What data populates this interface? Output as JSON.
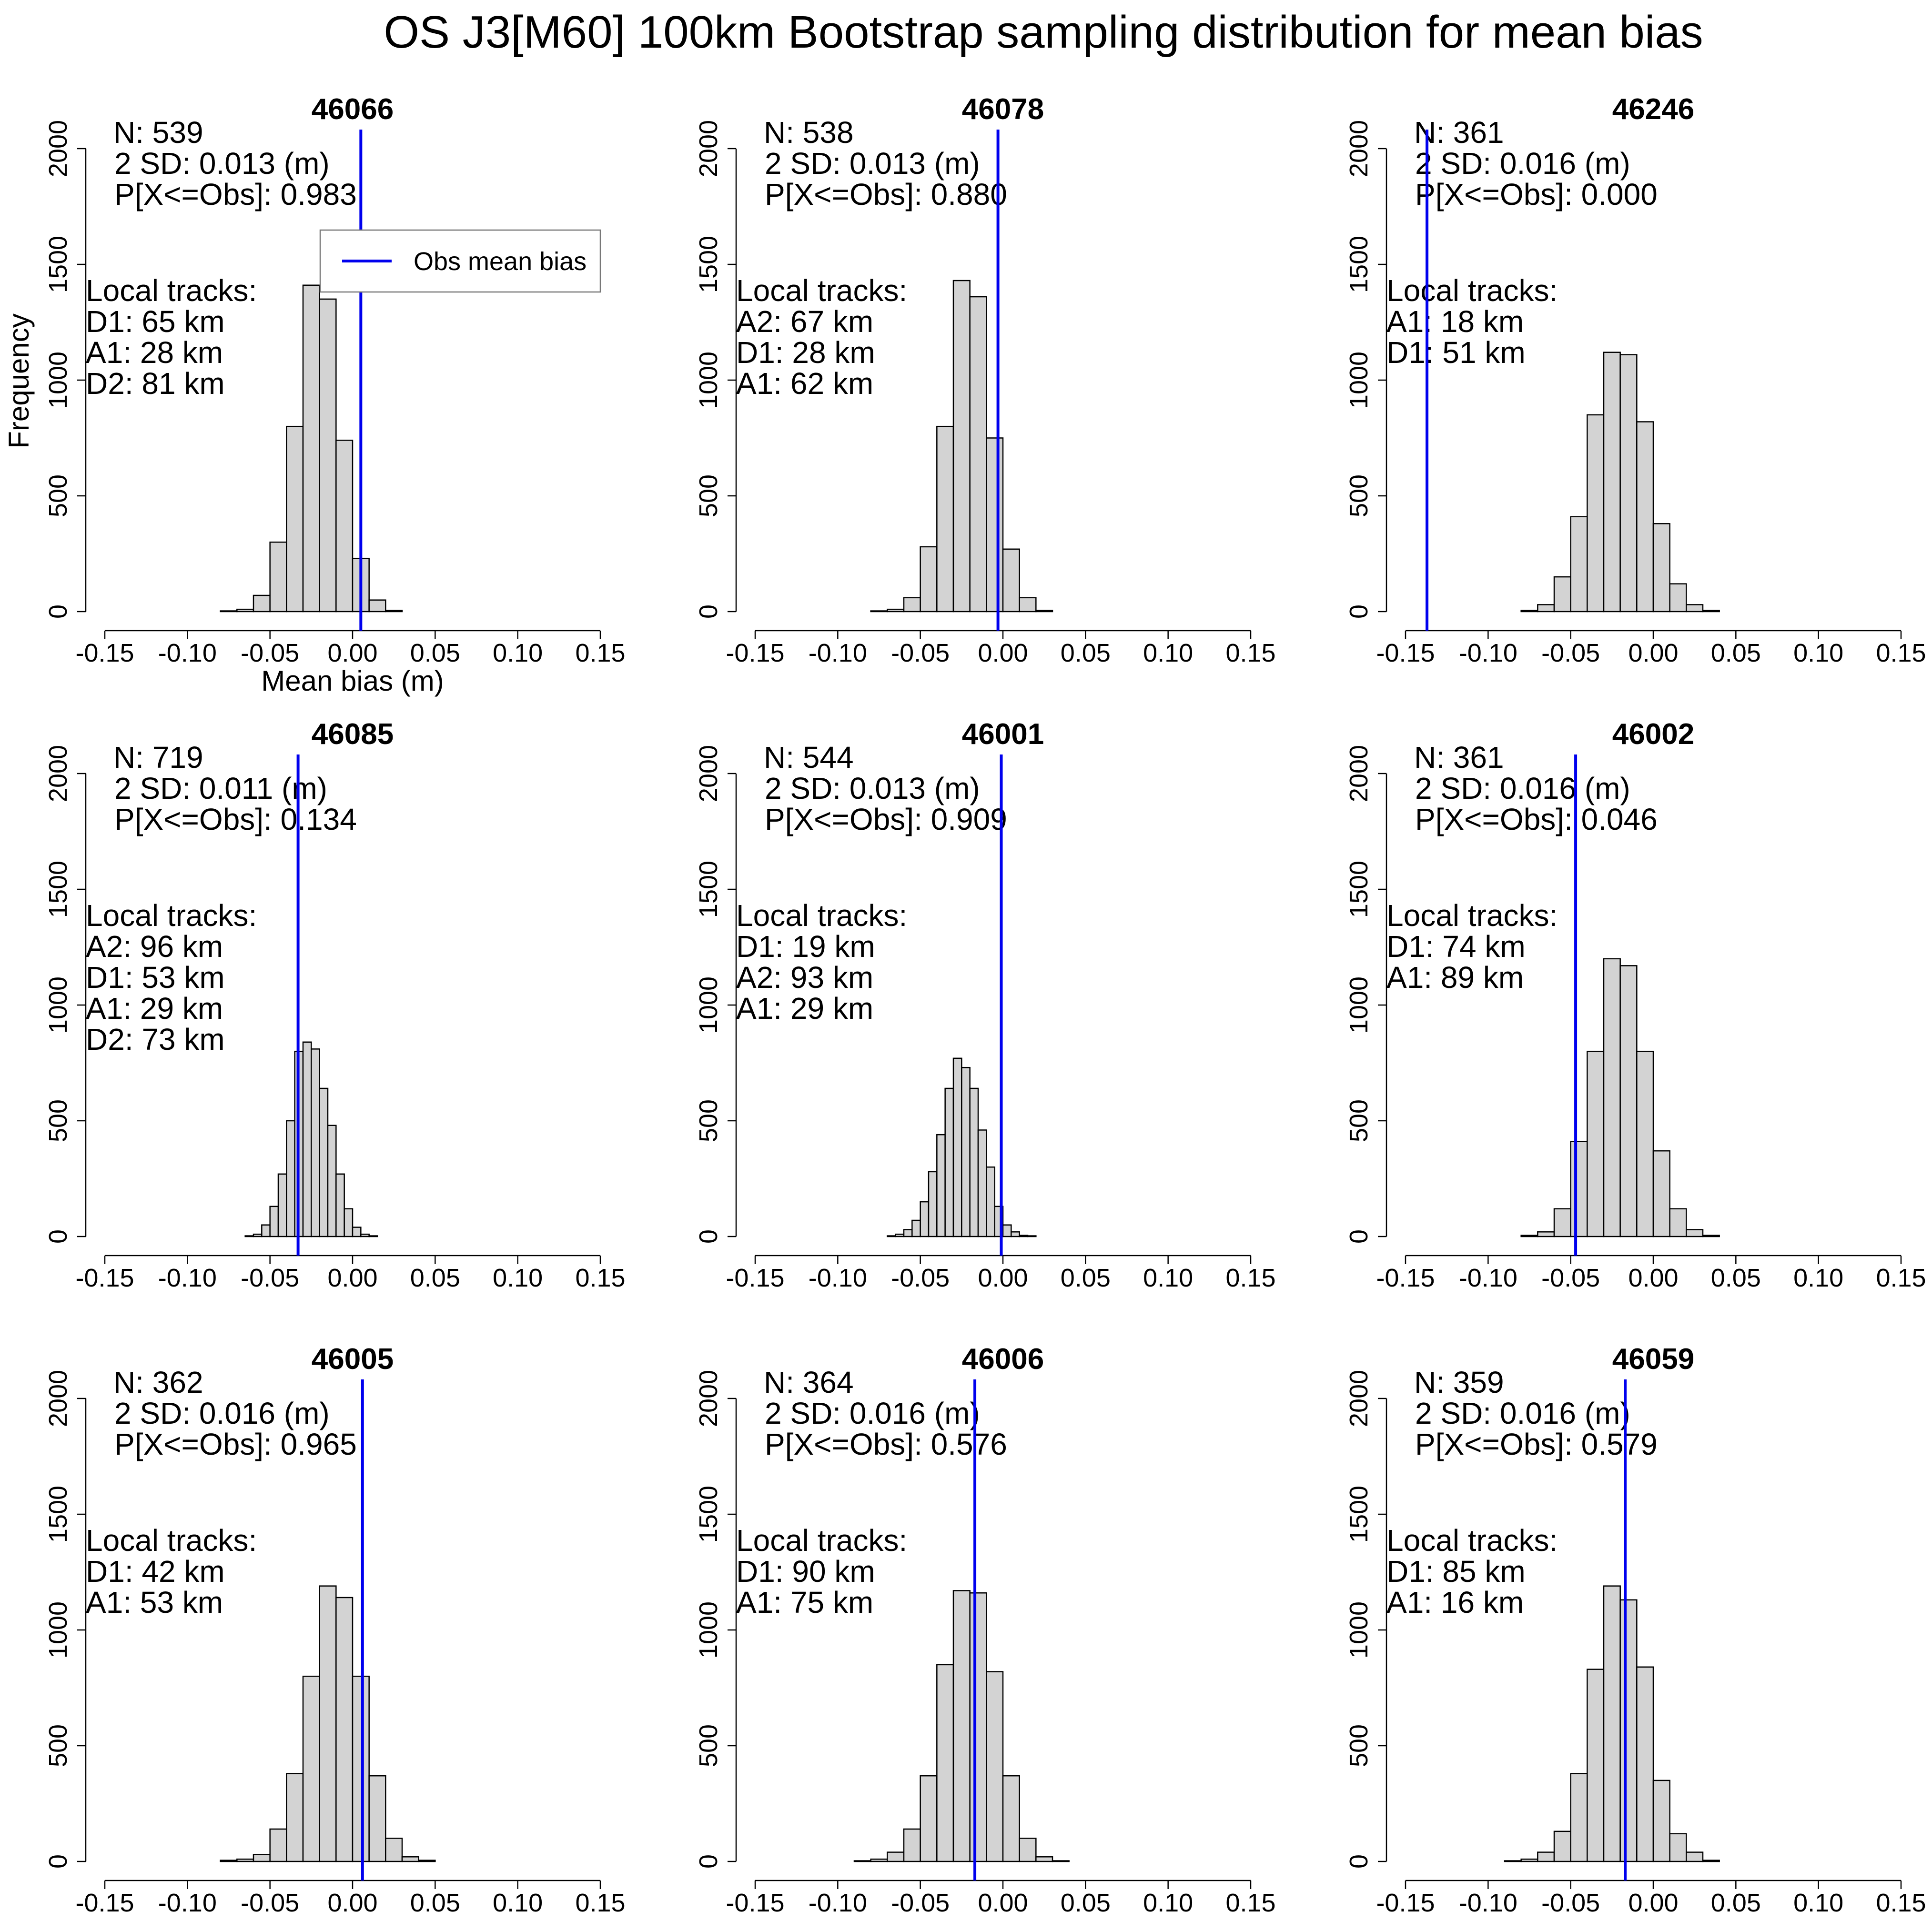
{
  "figure": {
    "title": "OS J3[M60] 100km Bootstrap sampling distribution for mean bias",
    "ylabel": "Frequency",
    "xlabel": "Mean bias (m)",
    "colors": {
      "bar_fill": "#d3d3d3",
      "bar_stroke": "#000000",
      "obs_line": "#0000ee"
    },
    "legend": {
      "label": "Obs mean bias",
      "location": "top-right of first panel"
    }
  },
  "chart_data": [
    {
      "type": "bar",
      "station": "46066",
      "xlim": [
        -0.15,
        0.15
      ],
      "ylim": [
        0,
        2000
      ],
      "xticks": [
        "-0.15",
        "-0.10",
        "-0.05",
        "0.00",
        "0.05",
        "0.10",
        "0.15"
      ],
      "yticks": [
        "0",
        "500",
        "1000",
        "1500",
        "2000"
      ],
      "bin_width": 0.01,
      "bin_start": -0.08,
      "values": [
        3,
        10,
        70,
        300,
        800,
        1410,
        1350,
        740,
        230,
        50,
        5
      ],
      "obs_mean_bias": 0.005,
      "stats": [
        "N: 539",
        "2 SD: 0.013 (m)",
        "P[X<=Obs]: 0.983"
      ],
      "tracks": [
        "Local tracks:",
        "D1: 65 km",
        "A1: 28 km",
        "D2: 81 km"
      ]
    },
    {
      "type": "bar",
      "station": "46078",
      "xlim": [
        -0.15,
        0.15
      ],
      "ylim": [
        0,
        2000
      ],
      "xticks": [
        "-0.15",
        "-0.10",
        "-0.05",
        "0.00",
        "0.05",
        "0.10",
        "0.15"
      ],
      "yticks": [
        "0",
        "500",
        "1000",
        "1500",
        "2000"
      ],
      "bin_width": 0.01,
      "bin_start": -0.08,
      "values": [
        3,
        10,
        60,
        280,
        800,
        1430,
        1360,
        750,
        270,
        60,
        5
      ],
      "obs_mean_bias": -0.003,
      "stats": [
        "N: 538",
        "2 SD: 0.013 (m)",
        "P[X<=Obs]: 0.880"
      ],
      "tracks": [
        "Local tracks:",
        "A2: 67 km",
        "D1: 28 km",
        "A1: 62 km"
      ]
    },
    {
      "type": "bar",
      "station": "46246",
      "xlim": [
        -0.15,
        0.15
      ],
      "ylim": [
        0,
        2000
      ],
      "xticks": [
        "-0.15",
        "-0.10",
        "-0.05",
        "0.00",
        "0.05",
        "0.10",
        "0.15"
      ],
      "yticks": [
        "0",
        "500",
        "1000",
        "1500",
        "2000"
      ],
      "bin_width": 0.01,
      "bin_start": -0.08,
      "values": [
        5,
        30,
        150,
        410,
        850,
        1120,
        1110,
        820,
        380,
        120,
        30,
        5
      ],
      "obs_mean_bias": -0.137,
      "stats": [
        "N: 361",
        "2 SD: 0.016 (m)",
        "P[X<=Obs]: 0.000"
      ],
      "tracks": [
        "Local tracks:",
        "A1: 18 km",
        "D1: 51 km"
      ]
    },
    {
      "type": "bar",
      "station": "46085",
      "xlim": [
        -0.15,
        0.15
      ],
      "ylim": [
        0,
        2000
      ],
      "xticks": [
        "-0.15",
        "-0.10",
        "-0.05",
        "0.00",
        "0.05",
        "0.10",
        "0.15"
      ],
      "yticks": [
        "0",
        "500",
        "1000",
        "1500",
        "2000"
      ],
      "bin_width": 0.005,
      "bin_start": -0.065,
      "values": [
        3,
        10,
        50,
        130,
        270,
        500,
        800,
        840,
        810,
        640,
        480,
        270,
        120,
        40,
        10,
        3
      ],
      "obs_mean_bias": -0.033,
      "stats": [
        "N: 719",
        "2 SD: 0.011 (m)",
        "P[X<=Obs]: 0.134"
      ],
      "tracks": [
        "Local tracks:",
        "A2: 96 km",
        "D1: 53 km",
        "A1: 29 km",
        "D2: 73 km"
      ]
    },
    {
      "type": "bar",
      "station": "46001",
      "xlim": [
        -0.15,
        0.15
      ],
      "ylim": [
        0,
        2000
      ],
      "xticks": [
        "-0.15",
        "-0.10",
        "-0.05",
        "0.00",
        "0.05",
        "0.10",
        "0.15"
      ],
      "yticks": [
        "0",
        "500",
        "1000",
        "1500",
        "2000"
      ],
      "bin_width": 0.005,
      "bin_start": -0.07,
      "values": [
        3,
        10,
        30,
        70,
        150,
        280,
        440,
        640,
        770,
        730,
        640,
        460,
        300,
        130,
        50,
        20,
        5,
        3
      ],
      "obs_mean_bias": -0.001,
      "stats": [
        "N: 544",
        "2 SD: 0.013 (m)",
        "P[X<=Obs]: 0.909"
      ],
      "tracks": [
        "Local tracks:",
        "D1: 19 km",
        "A2: 93 km",
        "A1: 29 km"
      ]
    },
    {
      "type": "bar",
      "station": "46002",
      "xlim": [
        -0.15,
        0.15
      ],
      "ylim": [
        0,
        2000
      ],
      "xticks": [
        "-0.15",
        "-0.10",
        "-0.05",
        "0.00",
        "0.05",
        "0.10",
        "0.15"
      ],
      "yticks": [
        "0",
        "500",
        "1000",
        "1500",
        "2000"
      ],
      "bin_width": 0.01,
      "bin_start": -0.08,
      "values": [
        5,
        20,
        120,
        410,
        800,
        1200,
        1170,
        800,
        370,
        120,
        30,
        5
      ],
      "obs_mean_bias": -0.047,
      "stats": [
        "N: 361",
        "2 SD: 0.016 (m)",
        "P[X<=Obs]: 0.046"
      ],
      "tracks": [
        "Local tracks:",
        "D1: 74 km",
        "A1: 89 km"
      ]
    },
    {
      "type": "bar",
      "station": "46005",
      "xlim": [
        -0.15,
        0.15
      ],
      "ylim": [
        0,
        2000
      ],
      "xticks": [
        "-0.15",
        "-0.10",
        "-0.05",
        "0.00",
        "0.05",
        "0.10",
        "0.15"
      ],
      "yticks": [
        "0",
        "500",
        "1000",
        "1500",
        "2000"
      ],
      "bin_width": 0.01,
      "bin_start": -0.08,
      "values": [
        5,
        10,
        30,
        140,
        380,
        800,
        1190,
        1140,
        800,
        370,
        100,
        20,
        5
      ],
      "obs_mean_bias": 0.006,
      "stats": [
        "N: 362",
        "2 SD: 0.016 (m)",
        "P[X<=Obs]: 0.965"
      ],
      "tracks": [
        "Local tracks:",
        "D1: 42 km",
        "A1: 53 km"
      ]
    },
    {
      "type": "bar",
      "station": "46006",
      "xlim": [
        -0.15,
        0.15
      ],
      "ylim": [
        0,
        2000
      ],
      "xticks": [
        "-0.15",
        "-0.10",
        "-0.05",
        "0.00",
        "0.05",
        "0.10",
        "0.15"
      ],
      "yticks": [
        "0",
        "500",
        "1000",
        "1500",
        "2000"
      ],
      "bin_width": 0.01,
      "bin_start": -0.09,
      "values": [
        3,
        10,
        40,
        140,
        370,
        850,
        1170,
        1160,
        820,
        370,
        100,
        20,
        3
      ],
      "obs_mean_bias": -0.017,
      "stats": [
        "N: 364",
        "2 SD: 0.016 (m)",
        "P[X<=Obs]: 0.576"
      ],
      "tracks": [
        "Local tracks:",
        "D1: 90 km",
        "A1: 75 km"
      ]
    },
    {
      "type": "bar",
      "station": "46059",
      "xlim": [
        -0.15,
        0.15
      ],
      "ylim": [
        0,
        2000
      ],
      "xticks": [
        "-0.15",
        "-0.10",
        "-0.05",
        "0.00",
        "0.05",
        "0.10",
        "0.15"
      ],
      "yticks": [
        "0",
        "500",
        "1000",
        "1500",
        "2000"
      ],
      "bin_width": 0.01,
      "bin_start": -0.09,
      "values": [
        3,
        10,
        40,
        130,
        380,
        830,
        1190,
        1130,
        840,
        350,
        120,
        40,
        5
      ],
      "obs_mean_bias": -0.017,
      "stats": [
        "N: 359",
        "2 SD: 0.016 (m)",
        "P[X<=Obs]: 0.579"
      ],
      "tracks": [
        "Local tracks:",
        "D1: 85 km",
        "A1: 16 km"
      ]
    }
  ]
}
